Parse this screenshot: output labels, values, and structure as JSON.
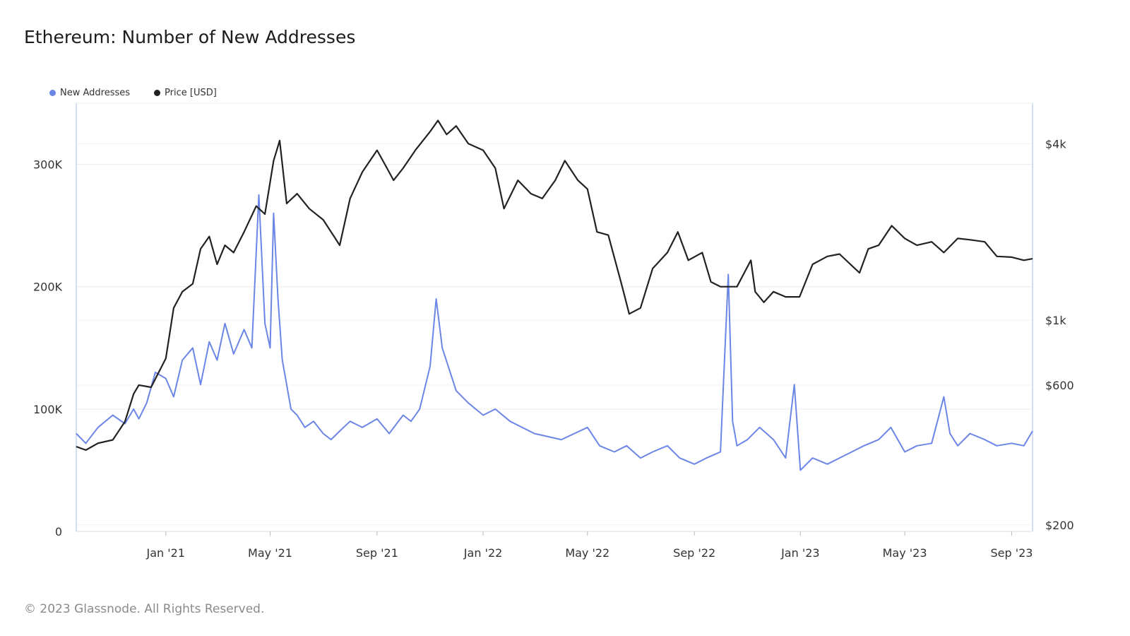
{
  "title": "Ethereum: Number of New Addresses",
  "footer": "© 2023 Glassnode. All Rights Reserved.",
  "legend": [
    {
      "label": "New Addresses",
      "color": "#6b86e6"
    },
    {
      "label": "Price [USD]",
      "color": "#222222"
    }
  ],
  "chart_data": {
    "type": "line",
    "xlabel": "",
    "x_ticks": [
      "Jan '21",
      "May '21",
      "Sep '21",
      "Jan '22",
      "May '22",
      "Sep '22",
      "Jan '23",
      "May '23",
      "Sep '23"
    ],
    "x_range": [
      "2020-09-20",
      "2023-09-25"
    ],
    "y_left": {
      "label": "",
      "ticks": [
        "0",
        "100K",
        "200K",
        "300K"
      ],
      "tick_values": [
        0,
        100000,
        200000,
        300000
      ],
      "range": [
        0,
        350000
      ]
    },
    "y_right": {
      "label": "",
      "scale": "log",
      "ticks": [
        "$200",
        "$600",
        "$1k",
        "$4k"
      ],
      "tick_values": [
        200,
        600,
        1000,
        4000
      ],
      "range": [
        190,
        5500
      ]
    },
    "grid": true,
    "legend_position": "top-left",
    "series": [
      {
        "name": "New Addresses",
        "axis": "left",
        "color": "#6b86e6",
        "x": [
          "2020-09-20",
          "2020-10-01",
          "2020-10-15",
          "2020-11-01",
          "2020-11-15",
          "2020-11-25",
          "2020-12-01",
          "2020-12-10",
          "2020-12-20",
          "2021-01-01",
          "2021-01-10",
          "2021-01-20",
          "2021-02-01",
          "2021-02-10",
          "2021-02-20",
          "2021-03-01",
          "2021-03-10",
          "2021-03-20",
          "2021-04-01",
          "2021-04-10",
          "2021-04-18",
          "2021-04-25",
          "2021-05-01",
          "2021-05-05",
          "2021-05-10",
          "2021-05-15",
          "2021-05-20",
          "2021-05-25",
          "2021-06-01",
          "2021-06-10",
          "2021-06-20",
          "2021-07-01",
          "2021-07-10",
          "2021-07-20",
          "2021-08-01",
          "2021-08-15",
          "2021-09-01",
          "2021-09-15",
          "2021-10-01",
          "2021-10-10",
          "2021-10-20",
          "2021-11-01",
          "2021-11-08",
          "2021-11-15",
          "2021-12-01",
          "2021-12-15",
          "2022-01-01",
          "2022-01-15",
          "2022-02-01",
          "2022-03-01",
          "2022-04-01",
          "2022-05-01",
          "2022-05-15",
          "2022-06-01",
          "2022-06-15",
          "2022-07-01",
          "2022-07-15",
          "2022-08-01",
          "2022-08-15",
          "2022-09-01",
          "2022-09-15",
          "2022-10-01",
          "2022-10-10",
          "2022-10-15",
          "2022-10-20",
          "2022-11-01",
          "2022-11-15",
          "2022-12-01",
          "2022-12-15",
          "2022-12-25",
          "2023-01-01",
          "2023-01-15",
          "2023-02-01",
          "2023-02-15",
          "2023-03-01",
          "2023-03-15",
          "2023-04-01",
          "2023-04-15",
          "2023-05-01",
          "2023-05-15",
          "2023-06-01",
          "2023-06-15",
          "2023-06-22",
          "2023-07-01",
          "2023-07-15",
          "2023-08-01",
          "2023-08-15",
          "2023-09-01",
          "2023-09-15",
          "2023-09-25"
        ],
        "values": [
          80000,
          72000,
          85000,
          95000,
          88000,
          100000,
          92000,
          105000,
          130000,
          125000,
          110000,
          140000,
          150000,
          120000,
          155000,
          140000,
          170000,
          145000,
          165000,
          150000,
          275000,
          170000,
          150000,
          260000,
          190000,
          140000,
          120000,
          100000,
          95000,
          85000,
          90000,
          80000,
          75000,
          82000,
          90000,
          85000,
          92000,
          80000,
          95000,
          90000,
          100000,
          135000,
          190000,
          150000,
          115000,
          105000,
          95000,
          100000,
          90000,
          80000,
          75000,
          85000,
          70000,
          65000,
          70000,
          60000,
          65000,
          70000,
          60000,
          55000,
          60000,
          65000,
          210000,
          90000,
          70000,
          75000,
          85000,
          75000,
          60000,
          120000,
          50000,
          60000,
          55000,
          60000,
          65000,
          70000,
          75000,
          85000,
          65000,
          70000,
          72000,
          110000,
          80000,
          70000,
          80000,
          75000,
          70000,
          72000,
          70000,
          82000
        ]
      },
      {
        "name": "Price [USD]",
        "axis": "right",
        "color": "#222222",
        "x": [
          "2020-09-20",
          "2020-10-01",
          "2020-10-15",
          "2020-11-01",
          "2020-11-15",
          "2020-11-25",
          "2020-12-01",
          "2020-12-15",
          "2021-01-01",
          "2021-01-10",
          "2021-01-20",
          "2021-02-01",
          "2021-02-10",
          "2021-02-20",
          "2021-03-01",
          "2021-03-10",
          "2021-03-20",
          "2021-04-01",
          "2021-04-15",
          "2021-04-25",
          "2021-05-05",
          "2021-05-12",
          "2021-05-20",
          "2021-06-01",
          "2021-06-15",
          "2021-07-01",
          "2021-07-15",
          "2021-07-20",
          "2021-08-01",
          "2021-08-15",
          "2021-09-01",
          "2021-09-10",
          "2021-09-20",
          "2021-10-01",
          "2021-10-15",
          "2021-11-01",
          "2021-11-10",
          "2021-11-20",
          "2021-12-01",
          "2021-12-15",
          "2022-01-01",
          "2022-01-15",
          "2022-01-25",
          "2022-02-10",
          "2022-02-25",
          "2022-03-10",
          "2022-03-25",
          "2022-04-05",
          "2022-04-20",
          "2022-05-01",
          "2022-05-12",
          "2022-05-25",
          "2022-06-10",
          "2022-06-18",
          "2022-07-01",
          "2022-07-15",
          "2022-08-01",
          "2022-08-13",
          "2022-08-25",
          "2022-09-10",
          "2022-09-20",
          "2022-10-01",
          "2022-10-20",
          "2022-11-05",
          "2022-11-10",
          "2022-11-20",
          "2022-12-01",
          "2022-12-15",
          "2022-12-31",
          "2023-01-15",
          "2023-02-01",
          "2023-02-15",
          "2023-03-10",
          "2023-03-20",
          "2023-04-01",
          "2023-04-16",
          "2023-05-01",
          "2023-05-15",
          "2023-06-01",
          "2023-06-15",
          "2023-07-01",
          "2023-07-15",
          "2023-08-01",
          "2023-08-15",
          "2023-09-01",
          "2023-09-15",
          "2023-09-25"
        ],
        "values": [
          370,
          360,
          380,
          390,
          450,
          560,
          600,
          590,
          740,
          1100,
          1250,
          1330,
          1750,
          1930,
          1550,
          1800,
          1700,
          2000,
          2450,
          2300,
          3500,
          4100,
          2500,
          2700,
          2400,
          2200,
          1900,
          1800,
          2600,
          3200,
          3800,
          3400,
          3000,
          3300,
          3800,
          4400,
          4800,
          4300,
          4600,
          4000,
          3800,
          3300,
          2400,
          3000,
          2700,
          2600,
          3000,
          3500,
          3000,
          2800,
          2000,
          1950,
          1300,
          1050,
          1100,
          1500,
          1700,
          2000,
          1600,
          1700,
          1350,
          1300,
          1300,
          1600,
          1250,
          1150,
          1250,
          1200,
          1200,
          1550,
          1650,
          1680,
          1450,
          1750,
          1800,
          2100,
          1900,
          1800,
          1850,
          1700,
          1900,
          1880,
          1850,
          1650,
          1640,
          1600,
          1620
        ]
      }
    ]
  }
}
